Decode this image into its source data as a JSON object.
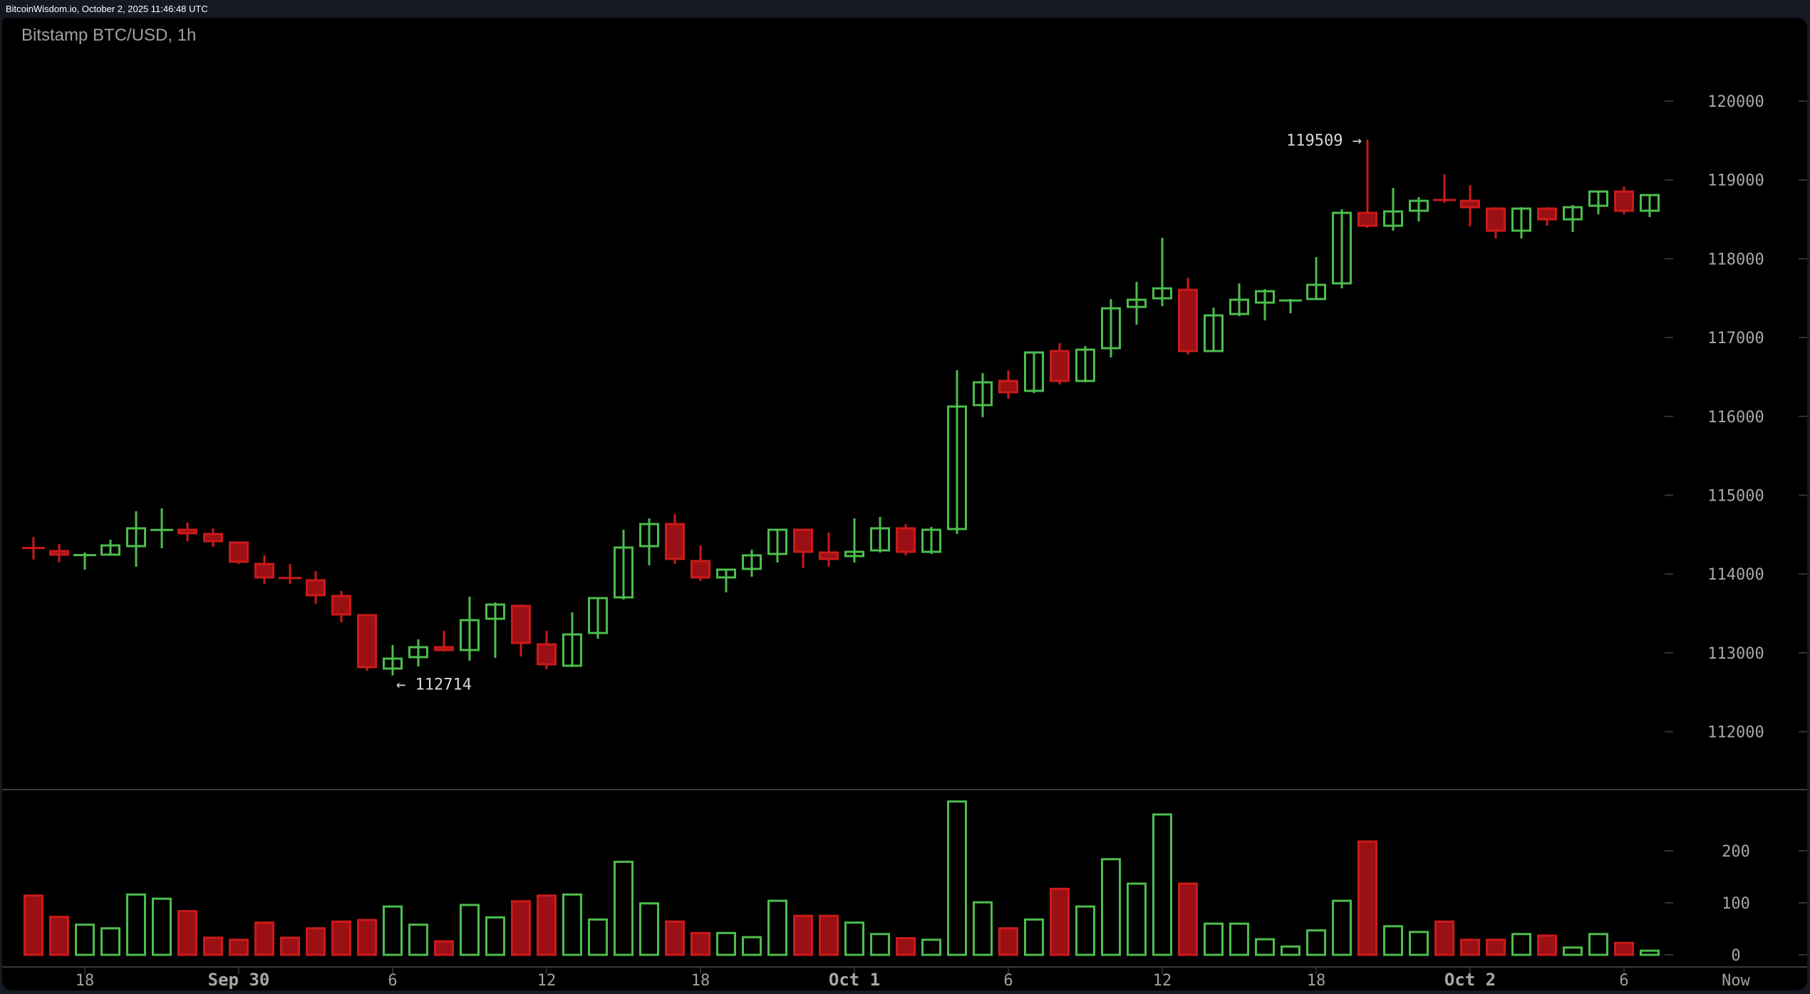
{
  "header": {
    "source_text": "BitcoinWisdom.io, October 2, 2025 11:46:48 UTC"
  },
  "chart": {
    "title": "Bitstamp BTC/USD, 1h"
  },
  "colors": {
    "up": "#4dbd4d",
    "down_fill": "#9b1014",
    "down_stroke": "#cc1a1a",
    "background": "#000000",
    "frame": "#151922",
    "axis_text": "#a8a8a8",
    "grid_tick": "#333333"
  },
  "annotations": {
    "high_label": "119509 →",
    "low_label": "← 112714"
  },
  "chart_data": {
    "type": "candlestick",
    "title": "Bitstamp BTC/USD, 1h",
    "xlabel": "",
    "ylabel": "",
    "ylim": [
      111500,
      120500
    ],
    "y_ticks": [
      "120000",
      "119000",
      "118000",
      "117000",
      "116000",
      "115000",
      "114000",
      "113000",
      "112000"
    ],
    "volume_ticks": [
      "200",
      "100",
      "0"
    ],
    "x_ticks": [
      {
        "label": "18",
        "index": 2,
        "bold": false
      },
      {
        "label": "Sep 30",
        "index": 8,
        "bold": true
      },
      {
        "label": "6",
        "index": 14,
        "bold": false
      },
      {
        "label": "12",
        "index": 20,
        "bold": false
      },
      {
        "label": "18",
        "index": 26,
        "bold": false
      },
      {
        "label": "Oct 1",
        "index": 32,
        "bold": true
      },
      {
        "label": "6",
        "index": 38,
        "bold": false
      },
      {
        "label": "12",
        "index": 44,
        "bold": false
      },
      {
        "label": "18",
        "index": 50,
        "bold": false
      },
      {
        "label": "Oct 2",
        "index": 56,
        "bold": true
      },
      {
        "label": "6",
        "index": 62,
        "bold": false
      },
      {
        "label": "Now",
        "index": 64,
        "bold": false
      }
    ],
    "high": {
      "value": 119509,
      "index": 52
    },
    "low": {
      "value": 112714,
      "index": 14
    },
    "candles": [
      [
        114330,
        114472,
        114183,
        114310,
        114
      ],
      [
        114291,
        114381,
        114147,
        114246,
        73
      ],
      [
        114228,
        114273,
        114056,
        114240,
        58
      ],
      [
        114246,
        114436,
        114240,
        114363,
        51
      ],
      [
        114354,
        114797,
        114092,
        114580,
        116
      ],
      [
        114550,
        114833,
        114327,
        114560,
        108
      ],
      [
        114562,
        114652,
        114417,
        114517,
        84
      ],
      [
        114508,
        114580,
        114345,
        114417,
        33
      ],
      [
        114400,
        114410,
        114128,
        114156,
        29
      ],
      [
        114128,
        114237,
        113876,
        113957,
        62
      ],
      [
        113950,
        114128,
        113876,
        113935,
        33
      ],
      [
        113921,
        114038,
        113623,
        113731,
        51
      ],
      [
        113722,
        113785,
        113388,
        113487,
        64
      ],
      [
        113478,
        113480,
        112774,
        112819,
        67
      ],
      [
        112801,
        113099,
        112714,
        112927,
        93
      ],
      [
        112946,
        113171,
        112828,
        113072,
        58
      ],
      [
        113072,
        113279,
        113018,
        113036,
        26
      ],
      [
        113036,
        113713,
        112900,
        113415,
        96
      ],
      [
        113433,
        113641,
        112936,
        113613,
        72
      ],
      [
        113596,
        113613,
        112955,
        113126,
        103
      ],
      [
        113108,
        113279,
        112792,
        112855,
        114
      ],
      [
        112837,
        113514,
        112819,
        113234,
        116
      ],
      [
        113252,
        113704,
        113180,
        113695,
        68
      ],
      [
        113704,
        114562,
        113677,
        114336,
        179
      ],
      [
        114354,
        114706,
        114110,
        114634,
        99
      ],
      [
        114634,
        114761,
        114128,
        114192,
        64
      ],
      [
        114165,
        114363,
        113912,
        113957,
        42
      ],
      [
        113957,
        114056,
        113767,
        114056,
        42
      ],
      [
        114065,
        114309,
        113966,
        114237,
        34
      ],
      [
        114255,
        114562,
        114147,
        114562,
        104
      ],
      [
        114562,
        114570,
        114074,
        114282,
        75
      ],
      [
        114273,
        114526,
        114092,
        114192,
        75
      ],
      [
        114228,
        114706,
        114147,
        114282,
        62
      ],
      [
        114300,
        114724,
        114273,
        114580,
        40
      ],
      [
        114580,
        114634,
        114237,
        114282,
        32
      ],
      [
        114282,
        114598,
        114255,
        114562,
        29
      ],
      [
        114571,
        116585,
        114508,
        116125,
        295
      ],
      [
        116143,
        116549,
        115990,
        116432,
        101
      ],
      [
        116450,
        116585,
        116224,
        116306,
        51
      ],
      [
        116324,
        116820,
        116297,
        116811,
        68
      ],
      [
        116829,
        116929,
        116405,
        116450,
        127
      ],
      [
        116450,
        116893,
        116432,
        116847,
        93
      ],
      [
        116865,
        117489,
        116748,
        117371,
        184
      ],
      [
        117389,
        117706,
        117164,
        117480,
        137
      ],
      [
        117498,
        118266,
        117398,
        117624,
        270
      ],
      [
        117606,
        117760,
        116784,
        116829,
        137
      ],
      [
        116829,
        117380,
        116820,
        117281,
        60
      ],
      [
        117299,
        117688,
        117272,
        117480,
        60
      ],
      [
        117444,
        117615,
        117218,
        117588,
        30
      ],
      [
        117462,
        117489,
        117308,
        117471,
        16
      ],
      [
        117489,
        118022,
        117480,
        117669,
        47
      ],
      [
        117688,
        118627,
        117624,
        118582,
        104
      ],
      [
        118582,
        119509,
        118392,
        118419,
        218
      ],
      [
        118419,
        118898,
        118356,
        118600,
        55
      ],
      [
        118609,
        118781,
        118473,
        118735,
        44
      ],
      [
        118745,
        119070,
        118708,
        118735,
        64
      ],
      [
        118735,
        118934,
        118410,
        118654,
        29
      ],
      [
        118636,
        118654,
        118257,
        118356,
        29
      ],
      [
        118356,
        118654,
        118257,
        118636,
        40
      ],
      [
        118636,
        118654,
        118419,
        118500,
        37
      ],
      [
        118500,
        118681,
        118338,
        118654,
        14
      ],
      [
        118672,
        118853,
        118564,
        118853,
        40
      ],
      [
        118853,
        118916,
        118564,
        118609,
        23
      ],
      [
        118609,
        118808,
        118528,
        118808,
        8
      ]
    ],
    "candle_fields": [
      "open",
      "high",
      "low",
      "close",
      "volume"
    ]
  }
}
